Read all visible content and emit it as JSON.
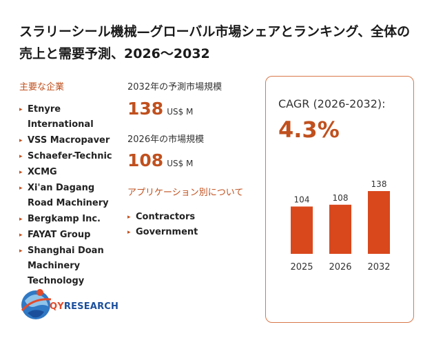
{
  "title": "スラリーシール機械—グローバル市場シェアとランキング、全体の売上と需要予測、2026～2032",
  "companies_heading": "主要な企業",
  "companies": [
    "Etnyre International",
    "VSS Macropaver",
    "Schaefer-Technic",
    "XCMG",
    "Xi'an Dagang Road Machinery",
    "Bergkamp Inc.",
    "FAYAT Group",
    "Shanghai Doan Machinery Technology"
  ],
  "forecast_label": "2032年の予測市場規模",
  "forecast_value": "138",
  "forecast_unit": "US$ M",
  "current_label": "2026年の市場規模",
  "current_value": "108",
  "current_unit": "US$ M",
  "applications_heading": "アプリケーション別について",
  "applications": [
    "Contractors",
    "Government"
  ],
  "cagr_label": "CAGR (2026-2032):",
  "cagr_value": "4.3%",
  "logo": {
    "prefix": "QY",
    "suffix": "RESEARCH"
  },
  "colors": {
    "accent": "#c0501e",
    "bar": "#d9481c",
    "logo_blue": "#1b4f9c"
  },
  "chart_data": {
    "type": "bar",
    "categories": [
      "2025",
      "2026",
      "2032"
    ],
    "values": [
      104,
      108,
      138
    ],
    "ylim": [
      0,
      150
    ]
  }
}
